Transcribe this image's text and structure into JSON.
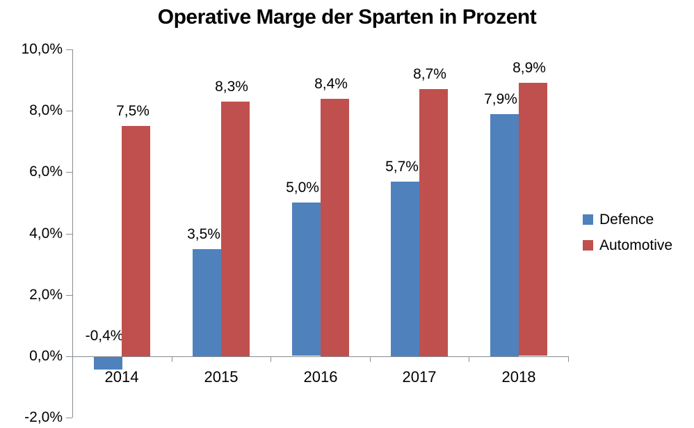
{
  "chart_data": {
    "type": "bar",
    "title": "Operative Marge der Sparten in Prozent",
    "categories": [
      "2014",
      "2015",
      "2016",
      "2017",
      "2018"
    ],
    "series": [
      {
        "name": "Defence",
        "color": "#4F81BD",
        "values": [
          -0.4,
          3.5,
          5.0,
          5.7,
          7.9
        ],
        "labels": [
          "-0,4%",
          "3,5%",
          "5,0%",
          "5,7%",
          "7,9%"
        ]
      },
      {
        "name": "Automotive",
        "color": "#C0504D",
        "values": [
          7.5,
          8.3,
          8.4,
          8.7,
          8.9
        ],
        "labels": [
          "7,5%",
          "8,3%",
          "8,4%",
          "8,7%",
          "8,9%"
        ]
      }
    ],
    "xlabel": "",
    "ylabel": "",
    "ylim": [
      -2,
      10
    ],
    "ytick_step": 2,
    "ytick_labels": [
      "10,0%",
      "8,0%",
      "6,0%",
      "4,0%",
      "2,0%",
      "0,0%",
      "-2,0%"
    ],
    "grid": "off",
    "legend_position": "right",
    "value_label_position": "outside-end",
    "axis_color": "#878C91",
    "text_color": "#000000",
    "background_color": "#FFFFFF"
  }
}
